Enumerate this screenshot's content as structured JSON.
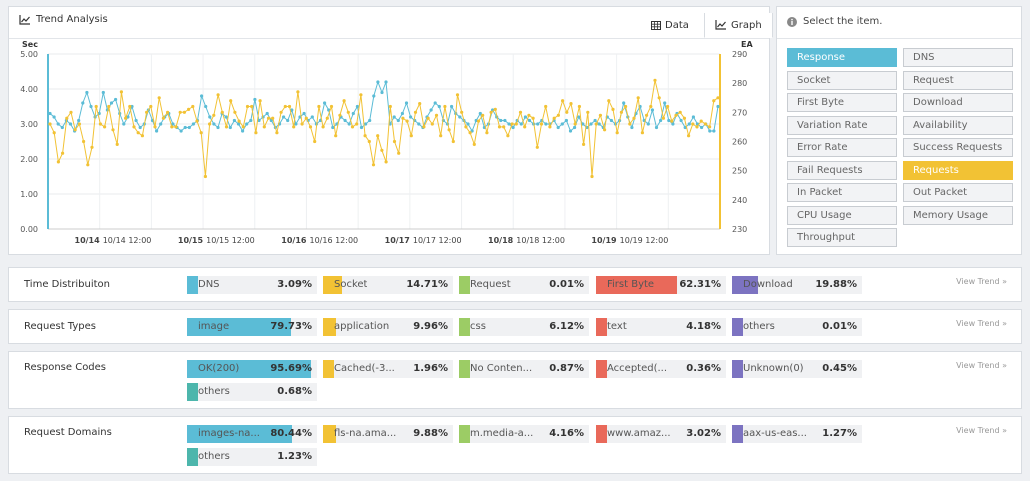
{
  "trend": {
    "title": "Trend Analysis",
    "tabs": {
      "data": "Data",
      "graph": "Graph"
    }
  },
  "selector": {
    "header": "Select the item.",
    "items": [
      {
        "label": "Response",
        "state": "primary"
      },
      {
        "label": "DNS",
        "state": "none"
      },
      {
        "label": "Socket",
        "state": "none"
      },
      {
        "label": "Request",
        "state": "none"
      },
      {
        "label": "First Byte",
        "state": "none"
      },
      {
        "label": "Download",
        "state": "none"
      },
      {
        "label": "Variation Rate",
        "state": "none"
      },
      {
        "label": "Availability",
        "state": "none"
      },
      {
        "label": "Error Rate",
        "state": "none"
      },
      {
        "label": "Success Requests",
        "state": "none"
      },
      {
        "label": "Fail Requests",
        "state": "none"
      },
      {
        "label": "Requests",
        "state": "secondary"
      },
      {
        "label": "In Packet",
        "state": "none"
      },
      {
        "label": "Out Packet",
        "state": "none"
      },
      {
        "label": "CPU Usage",
        "state": "none"
      },
      {
        "label": "Memory Usage",
        "state": "none"
      },
      {
        "label": "Throughput",
        "state": "none"
      }
    ]
  },
  "distributions": [
    {
      "label": "Time Distribuiton",
      "view_trend": "View Trend »",
      "items": [
        {
          "name": "DNS",
          "pct": "3.09%",
          "value": 3.09,
          "color": "#5bbcd6"
        },
        {
          "name": "Socket",
          "pct": "14.71%",
          "value": 14.71,
          "color": "#f2c234"
        },
        {
          "name": "Request",
          "pct": "0.01%",
          "value": 0.01,
          "color": "#9ccc65"
        },
        {
          "name": "First Byte",
          "pct": "62.31%",
          "value": 62.31,
          "color": "#e9695a"
        },
        {
          "name": "Download",
          "pct": "19.88%",
          "value": 19.88,
          "color": "#7c73c1"
        }
      ]
    },
    {
      "label": "Request Types",
      "view_trend": "View Trend »",
      "items": [
        {
          "name": "image",
          "pct": "79.73%",
          "value": 79.73,
          "color": "#5bbcd6"
        },
        {
          "name": "application",
          "pct": "9.96%",
          "value": 9.96,
          "color": "#f2c234"
        },
        {
          "name": "css",
          "pct": "6.12%",
          "value": 6.12,
          "color": "#9ccc65"
        },
        {
          "name": "text",
          "pct": "4.18%",
          "value": 4.18,
          "color": "#e9695a"
        },
        {
          "name": "others",
          "pct": "0.01%",
          "value": 0.01,
          "color": "#7c73c1"
        }
      ]
    },
    {
      "label": "Response Codes",
      "view_trend": "View Trend »",
      "items": [
        {
          "name": "OK(200)",
          "pct": "95.69%",
          "value": 95.69,
          "color": "#5bbcd6"
        },
        {
          "name": "Cached(-3...",
          "pct": "1.96%",
          "value": 1.96,
          "color": "#f2c234"
        },
        {
          "name": "No Conten...",
          "pct": "0.87%",
          "value": 0.87,
          "color": "#9ccc65"
        },
        {
          "name": "Accepted(...",
          "pct": "0.36%",
          "value": 0.36,
          "color": "#e9695a"
        },
        {
          "name": "Unknown(0)",
          "pct": "0.45%",
          "value": 0.45,
          "color": "#7c73c1"
        },
        {
          "name": "others",
          "pct": "0.68%",
          "value": 0.68,
          "color": "#4db6ac"
        }
      ]
    },
    {
      "label": "Request Domains",
      "view_trend": "View Trend »",
      "items": [
        {
          "name": "images-na...",
          "pct": "80.44%",
          "value": 80.44,
          "color": "#5bbcd6"
        },
        {
          "name": "fls-na.ama...",
          "pct": "9.88%",
          "value": 9.88,
          "color": "#f2c234"
        },
        {
          "name": "m.media-a...",
          "pct": "4.16%",
          "value": 4.16,
          "color": "#9ccc65"
        },
        {
          "name": "www.amaz...",
          "pct": "3.02%",
          "value": 3.02,
          "color": "#e9695a"
        },
        {
          "name": "aax-us-eas...",
          "pct": "1.27%",
          "value": 1.27,
          "color": "#7c73c1"
        },
        {
          "name": "others",
          "pct": "1.23%",
          "value": 1.23,
          "color": "#4db6ac"
        }
      ]
    }
  ],
  "chart_data": {
    "type": "line",
    "ylabel_left": "Sec",
    "ylabel_right": "EA",
    "ylim_left": [
      0,
      5
    ],
    "ylim_right": [
      230,
      290
    ],
    "yticks_left": [
      "0.00",
      "1.00",
      "2.00",
      "3.00",
      "4.00",
      "5.00"
    ],
    "yticks_right": [
      "230",
      "240",
      "250",
      "260",
      "270",
      "280",
      "290"
    ],
    "xlim": [
      0,
      6.5
    ],
    "xticks": [
      {
        "pos": 0.5,
        "label": "10/14",
        "bold": true
      },
      {
        "pos": 1.0,
        "label": "10/14 12:00",
        "bold": false
      },
      {
        "pos": 1.5,
        "label": "10/15",
        "bold": true
      },
      {
        "pos": 2.0,
        "label": "10/15 12:00",
        "bold": false
      },
      {
        "pos": 2.5,
        "label": "10/16",
        "bold": true
      },
      {
        "pos": 3.0,
        "label": "10/16 12:00",
        "bold": false
      },
      {
        "pos": 3.5,
        "label": "10/17",
        "bold": true
      },
      {
        "pos": 4.0,
        "label": "10/17 12:00",
        "bold": false
      },
      {
        "pos": 4.5,
        "label": "10/18",
        "bold": true
      },
      {
        "pos": 5.0,
        "label": "10/18 12:00",
        "bold": false
      },
      {
        "pos": 5.5,
        "label": "10/19",
        "bold": true
      },
      {
        "pos": 6.0,
        "label": "10/19 12:00",
        "bold": false
      }
    ],
    "series": [
      {
        "name": "Response",
        "axis": "left",
        "color": "#5bbcd6",
        "values": [
          3.3,
          3.2,
          3.0,
          2.9,
          3.1,
          3.0,
          2.8,
          3.1,
          3.6,
          3.9,
          3.5,
          3.2,
          3.3,
          3.9,
          3.4,
          3.6,
          3.7,
          3.3,
          3.0,
          3.2,
          3.5,
          3.1,
          2.9,
          3.0,
          3.4,
          3.1,
          2.8,
          3.0,
          3.2,
          3.3,
          3.0,
          2.9,
          2.8,
          2.9,
          2.9,
          3.0,
          3.1,
          3.8,
          3.5,
          3.2,
          3.0,
          2.9,
          3.3,
          3.2,
          2.9,
          3.1,
          3.0,
          2.8,
          3.0,
          3.1,
          3.7,
          3.1,
          3.2,
          3.3,
          3.1,
          2.9,
          3.0,
          3.2,
          3.1,
          3.4,
          3.0,
          3.2,
          3.3,
          3.1,
          3.2,
          3.0,
          3.1,
          3.6,
          3.4,
          2.9,
          3.0,
          3.2,
          3.1,
          3.0,
          3.3,
          3.5,
          2.9,
          3.0,
          3.1,
          3.8,
          4.2,
          3.9,
          4.2,
          3.0,
          3.2,
          3.1,
          3.3,
          3.6,
          3.2,
          3.1,
          3.0,
          2.9,
          3.2,
          3.4,
          3.6,
          3.5,
          3.1,
          3.0,
          3.5,
          3.3,
          3.2,
          3.1,
          3.0,
          2.8,
          3.1,
          3.3,
          2.9,
          3.0,
          3.4,
          3.2,
          3.1,
          3.1,
          3.0,
          2.9,
          3.1,
          3.0,
          3.2,
          3.1,
          3.0,
          3.0,
          3.1,
          3.0,
          3.0,
          3.1,
          2.9,
          3.0,
          3.1,
          2.8,
          2.9,
          3.2,
          3.0,
          2.9,
          3.0,
          3.1,
          3.0,
          2.9,
          3.2,
          3.1,
          3.0,
          3.1,
          3.6,
          3.2,
          2.9,
          3.3,
          3.5,
          3.1,
          3.0,
          3.4,
          2.9,
          3.1,
          3.6,
          3.1,
          3.0,
          3.3,
          3.1,
          2.9,
          3.0,
          3.2,
          3.0,
          2.9,
          3.0,
          2.8,
          2.8,
          3.5
        ]
      },
      {
        "name": "Requests",
        "axis": "right",
        "color": "#f2c234",
        "values": [
          266,
          263,
          253,
          256,
          268,
          270,
          264,
          266,
          260,
          252,
          258,
          272,
          266,
          265,
          272,
          264,
          259,
          277,
          268,
          272,
          265,
          263,
          262,
          270,
          272,
          265,
          275,
          268,
          270,
          265,
          265,
          270,
          270,
          271,
          272,
          267,
          263,
          248,
          266,
          269,
          276,
          270,
          265,
          274,
          270,
          267,
          265,
          272,
          272,
          263,
          274,
          265,
          268,
          268,
          263,
          270,
          272,
          272,
          265,
          277,
          266,
          268,
          265,
          260,
          272,
          265,
          268,
          272,
          262,
          269,
          274,
          270,
          265,
          266,
          276,
          262,
          260,
          252,
          262,
          257,
          253,
          272,
          260,
          256,
          268,
          267,
          262,
          270,
          273,
          265,
          268,
          266,
          269,
          262,
          272,
          264,
          260,
          276,
          270,
          265,
          263,
          259,
          267,
          269,
          263,
          270,
          271,
          265,
          265,
          262,
          266,
          266,
          270,
          265,
          269,
          268,
          258,
          266,
          272,
          265,
          268,
          269,
          274,
          270,
          273,
          266,
          272,
          259,
          270,
          248,
          266,
          269,
          264,
          274,
          271,
          263,
          270,
          272,
          266,
          268,
          275,
          263,
          269,
          272,
          281,
          275,
          268,
          272,
          267,
          269,
          270,
          268,
          262,
          266,
          265,
          267,
          266,
          265,
          274,
          275
        ]
      }
    ]
  }
}
